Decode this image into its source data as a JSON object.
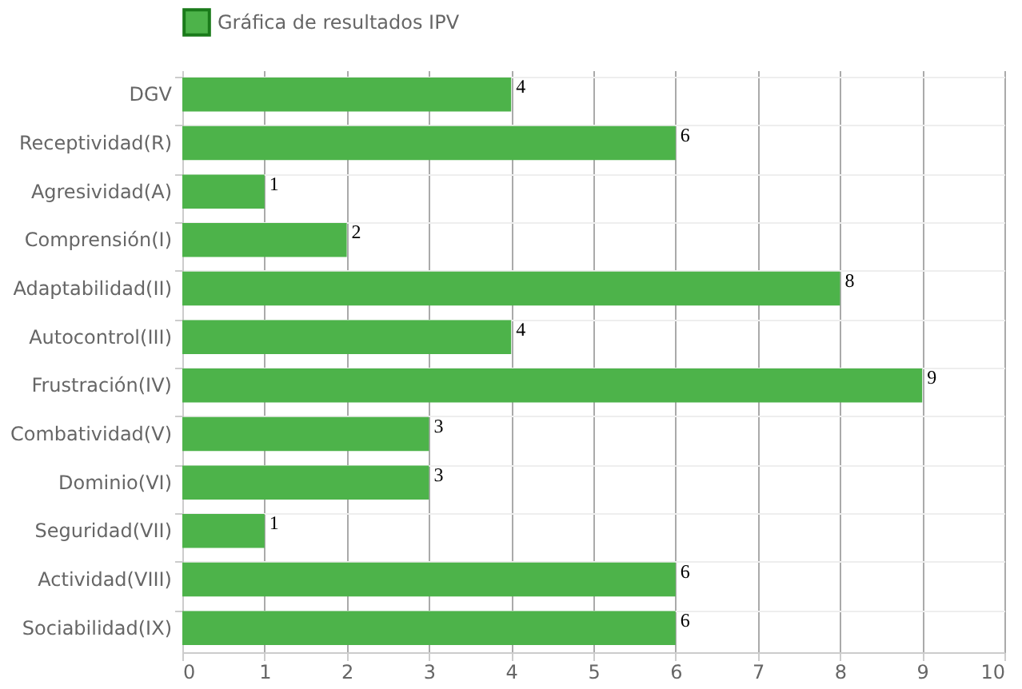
{
  "chart_data": {
    "type": "bar",
    "orientation": "horizontal",
    "categories": [
      "DGV",
      "Receptividad(R)",
      "Agresividad(A)",
      "Comprensión(I)",
      "Adaptabilidad(II)",
      "Autocontrol(III)",
      "Frustración(IV)",
      "Combatividad(V)",
      "Dominio(VI)",
      "Seguridad(VII)",
      "Actividad(VIII)",
      "Sociabilidad(IX)"
    ],
    "series": [
      {
        "name": "Gráfica de resultados IPV",
        "color": "#4db34a",
        "values": [
          4,
          6,
          1,
          2,
          8,
          4,
          9,
          3,
          3,
          1,
          6,
          6
        ]
      }
    ],
    "xlim": [
      0,
      10
    ],
    "xticks": [
      0,
      1,
      2,
      3,
      4,
      5,
      6,
      7,
      8,
      9,
      10
    ],
    "grid": true,
    "legend": "top",
    "data_labels": true
  }
}
